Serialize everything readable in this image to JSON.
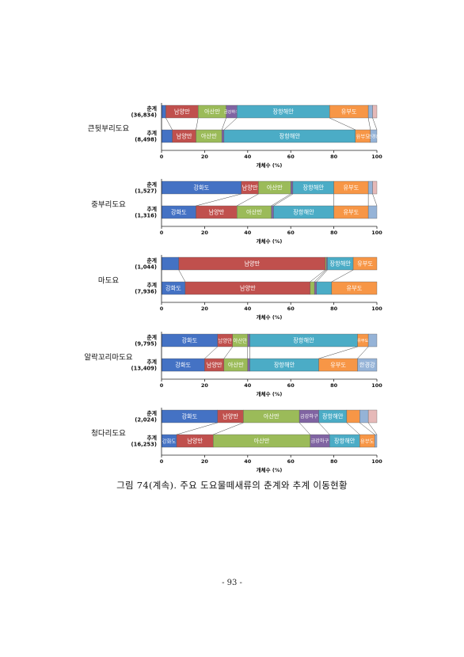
{
  "figure_caption": "그림 74(계속). 주요 도요물떼새류의 춘계와 추계 이동현황",
  "page_number": "- 93 -",
  "colors": {
    "강화도": "#4472C4",
    "남양만": "#C0504D",
    "아산만": "#9BBB59",
    "금강하구": "#8064A2",
    "장항해안": "#4BACC6",
    "유부도": "#F79646",
    "한경강": "#95B3D7",
    "기타": "#E6B9B8"
  },
  "chart_data": [
    {
      "type": "bar",
      "orientation": "horizontal-stacked-100",
      "species_label": "큰뒷부리도요",
      "xlabel": "개체수 (%)",
      "xlim": [
        0,
        100
      ],
      "xticks": [
        "0",
        "20",
        "40",
        "60",
        "80",
        "100"
      ],
      "rows": [
        {
          "season": "춘계",
          "total": "(36,834)",
          "segments": [
            {
              "site": "강화도",
              "label": "",
              "value": 2
            },
            {
              "site": "남양만",
              "label": "남양만",
              "value": 15
            },
            {
              "site": "아산만",
              "label": "아산만",
              "value": 13
            },
            {
              "site": "금강하구",
              "label": "금강하구",
              "value": 5
            },
            {
              "site": "장항해안",
              "label": "장항해안",
              "value": 43
            },
            {
              "site": "유부도",
              "label": "유부도",
              "value": 18
            },
            {
              "site": "한경강",
              "label": "",
              "value": 2
            },
            {
              "site": "기타",
              "label": "",
              "value": 2
            }
          ]
        },
        {
          "season": "추계",
          "total": "(8,498)",
          "segments": [
            {
              "site": "강화도",
              "label": "",
              "value": 5
            },
            {
              "site": "남양만",
              "label": "남양만",
              "value": 11
            },
            {
              "site": "아산만",
              "label": "아산만",
              "value": 12
            },
            {
              "site": "금강하구",
              "label": "",
              "value": 1
            },
            {
              "site": "장항해안",
              "label": "장항해안",
              "value": 61
            },
            {
              "site": "유부도",
              "label": "유부도",
              "value": 7
            },
            {
              "site": "한경강",
              "label": "한경강",
              "value": 3
            }
          ]
        }
      ]
    },
    {
      "type": "bar",
      "orientation": "horizontal-stacked-100",
      "species_label": "중부리도요",
      "xlabel": "개체수 (%)",
      "xlim": [
        0,
        100
      ],
      "xticks": [
        "0",
        "20",
        "40",
        "60",
        "80",
        "100"
      ],
      "rows": [
        {
          "season": "춘계",
          "total": "(1,527)",
          "segments": [
            {
              "site": "강화도",
              "label": "강화도",
              "value": 37
            },
            {
              "site": "남양만",
              "label": "남양만",
              "value": 8
            },
            {
              "site": "아산만",
              "label": "아산만",
              "value": 15
            },
            {
              "site": "금강하구",
              "label": "",
              "value": 1
            },
            {
              "site": "장항해안",
              "label": "장항해안",
              "value": 19
            },
            {
              "site": "유부도",
              "label": "유부도",
              "value": 16
            },
            {
              "site": "한경강",
              "label": "",
              "value": 2
            },
            {
              "site": "기타",
              "label": "",
              "value": 2
            }
          ]
        },
        {
          "season": "추계",
          "total": "(1,316)",
          "segments": [
            {
              "site": "강화도",
              "label": "강화도",
              "value": 16
            },
            {
              "site": "남양만",
              "label": "남양만",
              "value": 19
            },
            {
              "site": "아산만",
              "label": "아산만",
              "value": 16
            },
            {
              "site": "금강하구",
              "label": "",
              "value": 1
            },
            {
              "site": "장항해안",
              "label": "장항해안",
              "value": 28
            },
            {
              "site": "유부도",
              "label": "유부도",
              "value": 16
            },
            {
              "site": "한경강",
              "label": "",
              "value": 4
            }
          ]
        }
      ]
    },
    {
      "type": "bar",
      "orientation": "horizontal-stacked-100",
      "species_label": "마도요",
      "xlabel": "개체수 (%)",
      "xlim": [
        0,
        100
      ],
      "xticks": [
        "0",
        "20",
        "40",
        "60",
        "80",
        "100"
      ],
      "rows": [
        {
          "season": "춘계",
          "total": "(1,044)",
          "segments": [
            {
              "site": "강화도",
              "label": "",
              "value": 8
            },
            {
              "site": "남양만",
              "label": "남양만",
              "value": 68
            },
            {
              "site": "아산만",
              "label": "",
              "value": 0.5
            },
            {
              "site": "금강하구",
              "label": "",
              "value": 0.5
            },
            {
              "site": "장항해안",
              "label": "장항해안",
              "value": 12
            },
            {
              "site": "유부도",
              "label": "유부도",
              "value": 11
            }
          ]
        },
        {
          "season": "추계",
          "total": "(7,936)",
          "segments": [
            {
              "site": "강화도",
              "label": "강화도",
              "value": 11
            },
            {
              "site": "남양만",
              "label": "남양만",
              "value": 58
            },
            {
              "site": "아산만",
              "label": "",
              "value": 2
            },
            {
              "site": "금강하구",
              "label": "",
              "value": 1
            },
            {
              "site": "장항해안",
              "label": "",
              "value": 7
            },
            {
              "site": "유부도",
              "label": "유부도",
              "value": 21
            }
          ]
        }
      ]
    },
    {
      "type": "bar",
      "orientation": "horizontal-stacked-100",
      "species_label": "알락꼬리마도요",
      "xlabel": "개체수 (%)",
      "xlim": [
        0,
        100
      ],
      "xticks": [
        "0",
        "20",
        "40",
        "60",
        "80",
        "100"
      ],
      "rows": [
        {
          "season": "춘계",
          "total": "(9,795)",
          "segments": [
            {
              "site": "강화도",
              "label": "강화도",
              "value": 26
            },
            {
              "site": "남양만",
              "label": "남양만",
              "value": 7
            },
            {
              "site": "아산만",
              "label": "아산만",
              "value": 7
            },
            {
              "site": "금강하구",
              "label": "",
              "value": 1
            },
            {
              "site": "장항해안",
              "label": "장항해안",
              "value": 50
            },
            {
              "site": "유부도",
              "label": "유부도",
              "value": 5
            },
            {
              "site": "한경강",
              "label": "",
              "value": 4
            }
          ]
        },
        {
          "season": "추계",
          "total": "(13,409)",
          "segments": [
            {
              "site": "강화도",
              "label": "강화도",
              "value": 20
            },
            {
              "site": "남양만",
              "label": "남양만",
              "value": 9
            },
            {
              "site": "아산만",
              "label": "아산만",
              "value": 11
            },
            {
              "site": "금강하구",
              "label": "",
              "value": 1
            },
            {
              "site": "장항해안",
              "label": "장항해안",
              "value": 32
            },
            {
              "site": "유부도",
              "label": "유부도",
              "value": 18
            },
            {
              "site": "한경강",
              "label": "한경강",
              "value": 9
            }
          ]
        }
      ]
    },
    {
      "type": "bar",
      "orientation": "horizontal-stacked-100",
      "species_label": "청다리도요",
      "xlabel": "개체수 (%)",
      "xlim": [
        0,
        100
      ],
      "xticks": [
        "0",
        "20",
        "40",
        "60",
        "80",
        "100"
      ],
      "rows": [
        {
          "season": "춘계",
          "total": "(2,024)",
          "segments": [
            {
              "site": "강화도",
              "label": "강화도",
              "value": 26
            },
            {
              "site": "남양만",
              "label": "남양만",
              "value": 12
            },
            {
              "site": "아산만",
              "label": "아산만",
              "value": 26
            },
            {
              "site": "금강하구",
              "label": "금강하구",
              "value": 9
            },
            {
              "site": "장항해안",
              "label": "장항해안",
              "value": 13
            },
            {
              "site": "유부도",
              "label": "",
              "value": 6
            },
            {
              "site": "한경강",
              "label": "",
              "value": 4
            },
            {
              "site": "기타",
              "label": "",
              "value": 4
            }
          ]
        },
        {
          "season": "추계",
          "total": "(16,253)",
          "segments": [
            {
              "site": "강화도",
              "label": "강화도",
              "value": 7
            },
            {
              "site": "남양만",
              "label": "남양만",
              "value": 17
            },
            {
              "site": "아산만",
              "label": "아산만",
              "value": 45
            },
            {
              "site": "금강하구",
              "label": "금강하구",
              "value": 9
            },
            {
              "site": "장항해안",
              "label": "장항해안",
              "value": 14
            },
            {
              "site": "유부도",
              "label": "유부도",
              "value": 7
            },
            {
              "site": "한경강",
              "label": "",
              "value": 1
            }
          ]
        }
      ]
    }
  ]
}
